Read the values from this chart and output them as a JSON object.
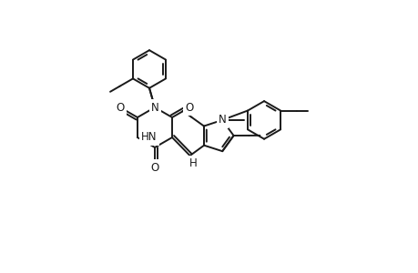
{
  "background_color": "#ffffff",
  "line_color": "#1a1a1a",
  "line_width": 1.4,
  "fig_width": 4.6,
  "fig_height": 3.0,
  "dpi": 100,
  "font_size": 8.5,
  "xlim": [
    0.0,
    9.0
  ],
  "ylim": [
    -1.0,
    6.5
  ]
}
